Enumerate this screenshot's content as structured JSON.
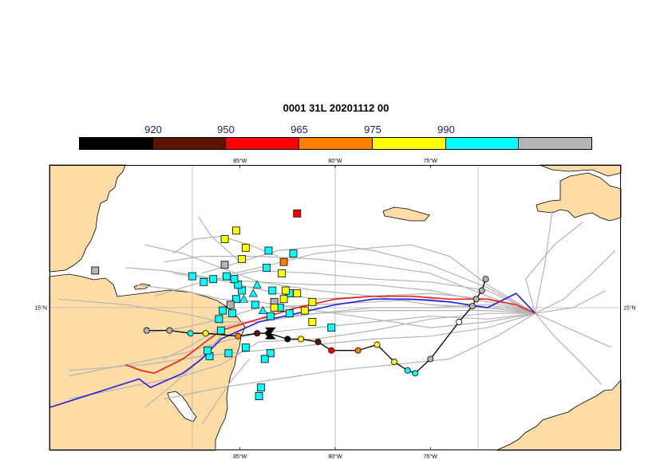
{
  "title": "0001 31L 20201112 00",
  "colorbar": {
    "labels": [
      "920",
      "950",
      "965",
      "975",
      "990"
    ],
    "colors": [
      "#000000",
      "#5c1400",
      "#ff0000",
      "#ff8000",
      "#ffff00",
      "#00ffff",
      "#b4b4b4"
    ]
  },
  "map": {
    "extent": {
      "lon_min": -95,
      "lon_max": -65,
      "lat_min": 10,
      "lat_max": 20
    },
    "lon_ticks": [
      {
        "value": -85,
        "label": "85°W"
      },
      {
        "value": -80,
        "label": "80°W"
      },
      {
        "value": -75,
        "label": "75°W"
      }
    ],
    "lat_ticks": [
      {
        "value": 15,
        "label": "15°N"
      }
    ],
    "land_color": "#fddca5",
    "sea_color": "#ffffff",
    "ensemble_color": "#b4b4b4",
    "ensemble_tracks": [
      [
        [
          -69.5,
          14.8
        ],
        [
          -72,
          15.0
        ],
        [
          -75,
          15.3
        ],
        [
          -78,
          15.2
        ],
        [
          -81,
          15.1
        ],
        [
          -84,
          15.0
        ],
        [
          -86,
          14.6
        ],
        [
          -88,
          14.3
        ],
        [
          -90,
          14.1
        ]
      ],
      [
        [
          -69.5,
          14.8
        ],
        [
          -72,
          15.2
        ],
        [
          -75,
          15.6
        ],
        [
          -78,
          15.8
        ],
        [
          -81,
          15.8
        ],
        [
          -84,
          15.9
        ],
        [
          -86.5,
          16.0
        ],
        [
          -88.5,
          16.2
        ]
      ],
      [
        [
          -69.5,
          14.8
        ],
        [
          -72,
          14.6
        ],
        [
          -75,
          14.7
        ],
        [
          -78,
          14.5
        ],
        [
          -81,
          14.3
        ],
        [
          -84,
          14.1
        ],
        [
          -86,
          13.8
        ],
        [
          -88,
          13.4
        ],
        [
          -91,
          13.0
        ],
        [
          -94,
          12.6
        ]
      ],
      [
        [
          -69.5,
          14.8
        ],
        [
          -72,
          15.4
        ],
        [
          -75,
          16.2
        ],
        [
          -78,
          16.5
        ],
        [
          -81,
          16.7
        ],
        [
          -84,
          16.8
        ],
        [
          -87,
          16.8
        ],
        [
          -89,
          16.6
        ]
      ],
      [
        [
          -69.5,
          14.8
        ],
        [
          -72,
          14.3
        ],
        [
          -75,
          14.0
        ],
        [
          -78,
          13.9
        ],
        [
          -81,
          13.7
        ],
        [
          -84,
          13.5
        ],
        [
          -87,
          13.3
        ],
        [
          -90,
          13.0
        ],
        [
          -94,
          12.8
        ]
      ],
      [
        [
          -69.5,
          14.8
        ],
        [
          -72,
          15.0
        ],
        [
          -75,
          15.1
        ],
        [
          -78,
          15.4
        ],
        [
          -81,
          15.6
        ],
        [
          -84,
          15.9
        ],
        [
          -86,
          16.4
        ],
        [
          -88,
          16.9
        ],
        [
          -90,
          17.2
        ]
      ],
      [
        [
          -69.5,
          14.8
        ],
        [
          -72,
          15.6
        ],
        [
          -75,
          15.9
        ],
        [
          -78,
          16.0
        ],
        [
          -81,
          16.2
        ],
        [
          -84,
          16.3
        ],
        [
          -87,
          15.9
        ],
        [
          -89.5,
          15.4
        ]
      ],
      [
        [
          -69.5,
          14.8
        ],
        [
          -72,
          14.8
        ],
        [
          -75,
          14.6
        ],
        [
          -78,
          14.2
        ],
        [
          -81,
          13.9
        ],
        [
          -84,
          13.8
        ],
        [
          -86,
          13.0
        ],
        [
          -88,
          12.6
        ],
        [
          -91,
          12.2
        ],
        [
          -94,
          11.8
        ]
      ],
      [
        [
          -69.5,
          14.8
        ],
        [
          -72,
          15.1
        ],
        [
          -75,
          15.0
        ],
        [
          -78,
          15.0
        ],
        [
          -81,
          14.8
        ],
        [
          -84,
          14.5
        ],
        [
          -86,
          14.5
        ],
        [
          -88,
          14.8
        ],
        [
          -91,
          15.1
        ],
        [
          -94.5,
          15.3
        ]
      ],
      [
        [
          -69.5,
          14.8
        ],
        [
          -72,
          15.7
        ],
        [
          -75,
          16.5
        ],
        [
          -78,
          17.0
        ],
        [
          -80,
          17.2
        ],
        [
          -83,
          17.0
        ],
        [
          -85,
          16.6
        ],
        [
          -87,
          16.2
        ]
      ],
      [
        [
          -69.5,
          14.8
        ],
        [
          -71.5,
          14.0
        ],
        [
          -74,
          13.2
        ],
        [
          -77,
          13.0
        ],
        [
          -80,
          12.8
        ],
        [
          -83,
          12.5
        ],
        [
          -86,
          12.2
        ],
        [
          -89,
          11.8
        ]
      ],
      [
        [
          -69.5,
          14.8
        ],
        [
          -72,
          15.3
        ],
        [
          -75,
          15.5
        ],
        [
          -78,
          15.4
        ],
        [
          -81,
          15.3
        ],
        [
          -83,
          15.5
        ],
        [
          -85,
          15.8
        ],
        [
          -87,
          16.1
        ],
        [
          -89,
          16.3
        ],
        [
          -91,
          16.4
        ]
      ],
      [
        [
          -69.5,
          14.8
        ],
        [
          -72,
          14.9
        ],
        [
          -75,
          14.9
        ],
        [
          -78,
          14.9
        ],
        [
          -81,
          14.8
        ],
        [
          -84,
          14.6
        ],
        [
          -86,
          14.3
        ],
        [
          -87.5,
          13.7
        ],
        [
          -89,
          13.2
        ]
      ],
      [
        [
          -69.5,
          14.8
        ],
        [
          -72,
          15.8
        ],
        [
          -74,
          16.8
        ],
        [
          -76,
          17.2
        ],
        [
          -78,
          17.1
        ],
        [
          -81,
          16.9
        ],
        [
          -84,
          16.4
        ],
        [
          -86,
          16.1
        ]
      ],
      [
        [
          -69.5,
          14.8
        ],
        [
          -72,
          14.5
        ],
        [
          -75,
          14.3
        ],
        [
          -78,
          14.6
        ],
        [
          -81,
          14.9
        ],
        [
          -84,
          15.2
        ],
        [
          -86,
          15.3
        ],
        [
          -88,
          15.6
        ],
        [
          -90.5,
          15.8
        ]
      ],
      [
        [
          -69.5,
          14.8
        ],
        [
          -70,
          16.0
        ],
        [
          -68.5,
          17.2
        ],
        [
          -67,
          18.0
        ]
      ],
      [
        [
          -69.5,
          14.8
        ],
        [
          -68,
          15.3
        ],
        [
          -66.5,
          16.2
        ],
        [
          -65.3,
          17.0
        ]
      ],
      [
        [
          -69.5,
          14.8
        ],
        [
          -68.5,
          14.0
        ],
        [
          -67,
          13.0
        ],
        [
          -66,
          12.3
        ]
      ],
      [
        [
          -69.5,
          14.8
        ],
        [
          -67.5,
          15.0
        ],
        [
          -65.8,
          15.6
        ]
      ],
      [
        [
          -69.5,
          14.8
        ],
        [
          -69,
          16.5
        ],
        [
          -68.6,
          18.4
        ]
      ],
      [
        [
          -69.5,
          14.8
        ],
        [
          -67.5,
          14.2
        ],
        [
          -65.5,
          13.6
        ]
      ],
      [
        [
          -84.5,
          13.2
        ],
        [
          -85.5,
          12.4
        ],
        [
          -86.3,
          11.6
        ],
        [
          -87,
          10.9
        ]
      ],
      [
        [
          -86,
          14.0
        ],
        [
          -87.5,
          12.9
        ],
        [
          -88.7,
          12.2
        ],
        [
          -90,
          11.5
        ]
      ],
      [
        [
          -85,
          16.6
        ],
        [
          -86.5,
          17.5
        ],
        [
          -87.2,
          18.2
        ]
      ],
      [
        [
          -83,
          16.8
        ],
        [
          -84.5,
          17.2
        ],
        [
          -86,
          17.5
        ],
        [
          -87.4,
          17.4
        ],
        [
          -88.5,
          16.9
        ]
      ]
    ],
    "blue_track": [
      [
        -69.5,
        14.8
      ],
      [
        -70.5,
        15.5
      ],
      [
        -72,
        15.0
      ],
      [
        -74,
        15.2
      ],
      [
        -76,
        15.3
      ],
      [
        -78,
        15.3
      ],
      [
        -80,
        15.1
      ],
      [
        -82,
        14.8
      ],
      [
        -84,
        14.5
      ],
      [
        -86,
        13.9
      ],
      [
        -87,
        13.2
      ],
      [
        -88,
        12.7
      ],
      [
        -89.7,
        12.2
      ],
      [
        -90.3,
        12.5
      ],
      [
        -95,
        11.5
      ]
    ],
    "red_track": [
      [
        -69.5,
        14.8
      ],
      [
        -70.5,
        15.1
      ],
      [
        -72,
        15.3
      ],
      [
        -74,
        15.3
      ],
      [
        -76,
        15.4
      ],
      [
        -78,
        15.4
      ],
      [
        -80,
        15.3
      ],
      [
        -82,
        15.0
      ],
      [
        -84,
        14.6
      ],
      [
        -86,
        14.2
      ],
      [
        -87,
        13.7
      ],
      [
        -88,
        13.2
      ],
      [
        -89.5,
        12.7
      ],
      [
        -90.2,
        12.8
      ],
      [
        -91,
        13.0
      ]
    ],
    "deterministic_track": {
      "line_color": "#000000",
      "points": [
        {
          "lon": -72.1,
          "lat": 16.0,
          "color": "#b4b4b4"
        },
        {
          "lon": -72.3,
          "lat": 15.6,
          "color": "#b4b4b4"
        },
        {
          "lon": -72.6,
          "lat": 15.3,
          "color": "#b4b4b4"
        },
        {
          "lon": -72.8,
          "lat": 15.05,
          "color": "#b4b4b4"
        },
        {
          "lon": -73.5,
          "lat": 14.5,
          "color": "#ffffff"
        },
        {
          "lon": -75.0,
          "lat": 13.2,
          "color": "#b4b4b4"
        },
        {
          "lon": -75.8,
          "lat": 12.7,
          "color": "#00ffff"
        },
        {
          "lon": -76.2,
          "lat": 12.8,
          "color": "#00ffff"
        },
        {
          "lon": -76.9,
          "lat": 13.1,
          "color": "#ffff00"
        },
        {
          "lon": -77.8,
          "lat": 13.7,
          "color": "#ffff00"
        },
        {
          "lon": -78.8,
          "lat": 13.5,
          "color": "#ff8000"
        },
        {
          "lon": -80.2,
          "lat": 13.5,
          "color": "#ff0000"
        },
        {
          "lon": -80.9,
          "lat": 13.8,
          "color": "#5c1400"
        },
        {
          "lon": -81.8,
          "lat": 13.9,
          "color": "#ffff00"
        },
        {
          "lon": -82.5,
          "lat": 13.9,
          "color": "#000000"
        },
        {
          "lon": -83.5,
          "lat": 14.1,
          "color": "#000000"
        },
        {
          "lon": -84.1,
          "lat": 14.1,
          "color": "#5c1400"
        },
        {
          "lon": -85.1,
          "lat": 14.0,
          "color": "#ff8000"
        },
        {
          "lon": -86.8,
          "lat": 14.1,
          "color": "#ffff00"
        },
        {
          "lon": -87.6,
          "lat": 14.1,
          "color": "#00ffff"
        },
        {
          "lon": -88.7,
          "lat": 14.2,
          "color": "#b4b4b4"
        },
        {
          "lon": -89.9,
          "lat": 14.2,
          "color": "#b4b4b4"
        }
      ]
    },
    "current_position": {
      "lon": -83.4,
      "lat": 14.1
    },
    "ensemble_squares": [
      {
        "lon": -80.2,
        "lat": 14.3,
        "color": "#00ffff"
      },
      {
        "lon": -82.2,
        "lat": 16.9,
        "color": "#00ffff"
      },
      {
        "lon": -82.4,
        "lat": 15.5,
        "color": "#00ffff"
      },
      {
        "lon": -82.4,
        "lat": 14.8,
        "color": "#00ffff"
      },
      {
        "lon": -82.9,
        "lat": 15.0,
        "color": "#00ffff"
      },
      {
        "lon": -83.3,
        "lat": 15.6,
        "color": "#00ffff"
      },
      {
        "lon": -83.4,
        "lat": 14.7,
        "color": "#00ffff"
      },
      {
        "lon": -83.4,
        "lat": 13.4,
        "color": "#00ffff"
      },
      {
        "lon": -83.5,
        "lat": 17.0,
        "color": "#00ffff"
      },
      {
        "lon": -83.6,
        "lat": 16.4,
        "color": "#00ffff"
      },
      {
        "lon": -83.7,
        "lat": 13.2,
        "color": "#00ffff"
      },
      {
        "lon": -83.9,
        "lat": 12.2,
        "color": "#00ffff"
      },
      {
        "lon": -84.0,
        "lat": 11.9,
        "color": "#00ffff"
      },
      {
        "lon": -84.2,
        "lat": 15.1,
        "color": "#00ffff"
      },
      {
        "lon": -84.7,
        "lat": 13.6,
        "color": "#00ffff"
      },
      {
        "lon": -84.9,
        "lat": 15.6,
        "color": "#00ffff"
      },
      {
        "lon": -85.1,
        "lat": 15.8,
        "color": "#00ffff"
      },
      {
        "lon": -85.2,
        "lat": 15.3,
        "color": "#00ffff"
      },
      {
        "lon": -85.3,
        "lat": 16.0,
        "color": "#00ffff"
      },
      {
        "lon": -85.4,
        "lat": 14.8,
        "color": "#00ffff"
      },
      {
        "lon": -85.6,
        "lat": 13.4,
        "color": "#00ffff"
      },
      {
        "lon": -85.7,
        "lat": 16.1,
        "color": "#00ffff"
      },
      {
        "lon": -85.9,
        "lat": 14.9,
        "color": "#00ffff"
      },
      {
        "lon": -86.0,
        "lat": 14.2,
        "color": "#00ffff"
      },
      {
        "lon": -86.1,
        "lat": 14.6,
        "color": "#00ffff"
      },
      {
        "lon": -86.4,
        "lat": 16.0,
        "color": "#00ffff"
      },
      {
        "lon": -86.6,
        "lat": 13.3,
        "color": "#00ffff"
      },
      {
        "lon": -86.7,
        "lat": 13.5,
        "color": "#00ffff"
      },
      {
        "lon": -86.9,
        "lat": 15.9,
        "color": "#00ffff"
      },
      {
        "lon": -87.5,
        "lat": 16.1,
        "color": "#00ffff"
      },
      {
        "lon": -85.5,
        "lat": 15.1,
        "color": "#b4b4b4"
      },
      {
        "lon": -83.2,
        "lat": 15.2,
        "color": "#b4b4b4"
      },
      {
        "lon": -85.8,
        "lat": 16.5,
        "color": "#b4b4b4"
      },
      {
        "lon": -92.6,
        "lat": 16.3,
        "color": "#b4b4b4"
      },
      {
        "lon": -81.2,
        "lat": 14.5,
        "color": "#ffff00"
      },
      {
        "lon": -81.2,
        "lat": 15.2,
        "color": "#ffff00"
      },
      {
        "lon": -81.6,
        "lat": 14.9,
        "color": "#ffff00"
      },
      {
        "lon": -82.0,
        "lat": 15.5,
        "color": "#ffff00"
      },
      {
        "lon": -82.6,
        "lat": 15.6,
        "color": "#ffff00"
      },
      {
        "lon": -82.7,
        "lat": 15.3,
        "color": "#ffff00"
      },
      {
        "lon": -82.8,
        "lat": 16.2,
        "color": "#ffff00"
      },
      {
        "lon": -83.2,
        "lat": 15.0,
        "color": "#ffff00"
      },
      {
        "lon": -84.7,
        "lat": 17.1,
        "color": "#ffff00"
      },
      {
        "lon": -84.9,
        "lat": 16.7,
        "color": "#ffff00"
      },
      {
        "lon": -85.2,
        "lat": 17.7,
        "color": "#ffff00"
      },
      {
        "lon": -85.8,
        "lat": 17.4,
        "color": "#ffff00"
      },
      {
        "lon": -82.7,
        "lat": 16.6,
        "color": "#ff8000"
      },
      {
        "lon": -82.0,
        "lat": 18.3,
        "color": "#ff0000"
      }
    ],
    "ensemble_triangles": [
      {
        "lon": -83.8,
        "lat": 14.9,
        "color": "#00ffff"
      },
      {
        "lon": -84.3,
        "lat": 15.5,
        "color": "#00ffff"
      },
      {
        "lon": -84.1,
        "lat": 15.8,
        "color": "#00ffff"
      },
      {
        "lon": -84.8,
        "lat": 15.3,
        "color": "#00ffff"
      }
    ]
  }
}
